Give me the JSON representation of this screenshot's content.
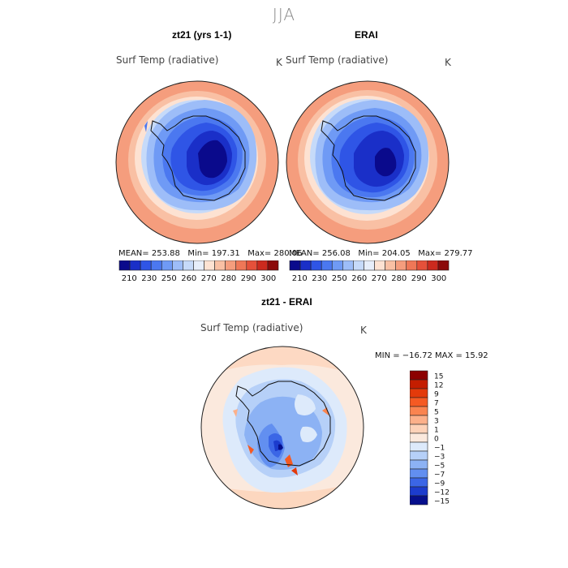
{
  "season": "JJA",
  "panels": [
    {
      "title": "zt21 (yrs 1-1)",
      "variable": "Surf Temp (radiative)",
      "units": "K",
      "stats": {
        "mean_label": "MEAN=",
        "mean": "253.88",
        "min_label": "Min=",
        "min": "197.31",
        "max_label": "Max=",
        "max": "280.06"
      }
    },
    {
      "title": "ERAI",
      "variable": "Surf Temp (radiative)",
      "units": "K",
      "stats": {
        "mean_label": "MEAN=",
        "mean": "256.08",
        "min_label": "Min=",
        "min": "204.05",
        "max_label": "Max=",
        "max": "279.77"
      }
    }
  ],
  "abs_colorbar": {
    "ticks": [
      "210",
      "230",
      "250",
      "260",
      "270",
      "280",
      "290",
      "300"
    ],
    "colors": [
      "#0a0a8c",
      "#1a2fc8",
      "#2f55e6",
      "#4b78f0",
      "#6f9af5",
      "#9dbdf8",
      "#c6daf9",
      "#e7eefa",
      "#fde2d2",
      "#f9c0a4",
      "#f59d7d",
      "#ef7757",
      "#e5503a",
      "#cc2a1e",
      "#8c0a0a"
    ]
  },
  "diff_panel": {
    "title": "zt21 - ERAI",
    "variable": "Surf Temp (radiative)",
    "units": "K",
    "minmax": "MIN = −16.72 MAX =  15.92",
    "colorbar": {
      "labels_top_to_bottom": [
        "15",
        "12",
        "9",
        "7",
        "5",
        "3",
        "1",
        "0",
        "−1",
        "−3",
        "−5",
        "−7",
        "−9",
        "−12",
        "−15"
      ],
      "colors_top_to_bottom": [
        "#8c0000",
        "#c41d00",
        "#e33a0a",
        "#f55a23",
        "#fa8450",
        "#fcb08a",
        "#fdd2b8",
        "#fbe9dd",
        "#ddeafb",
        "#b6d0f8",
        "#8cb2f4",
        "#628ff0",
        "#3b66e6",
        "#1c3ccd",
        "#060f8c"
      ]
    }
  }
}
